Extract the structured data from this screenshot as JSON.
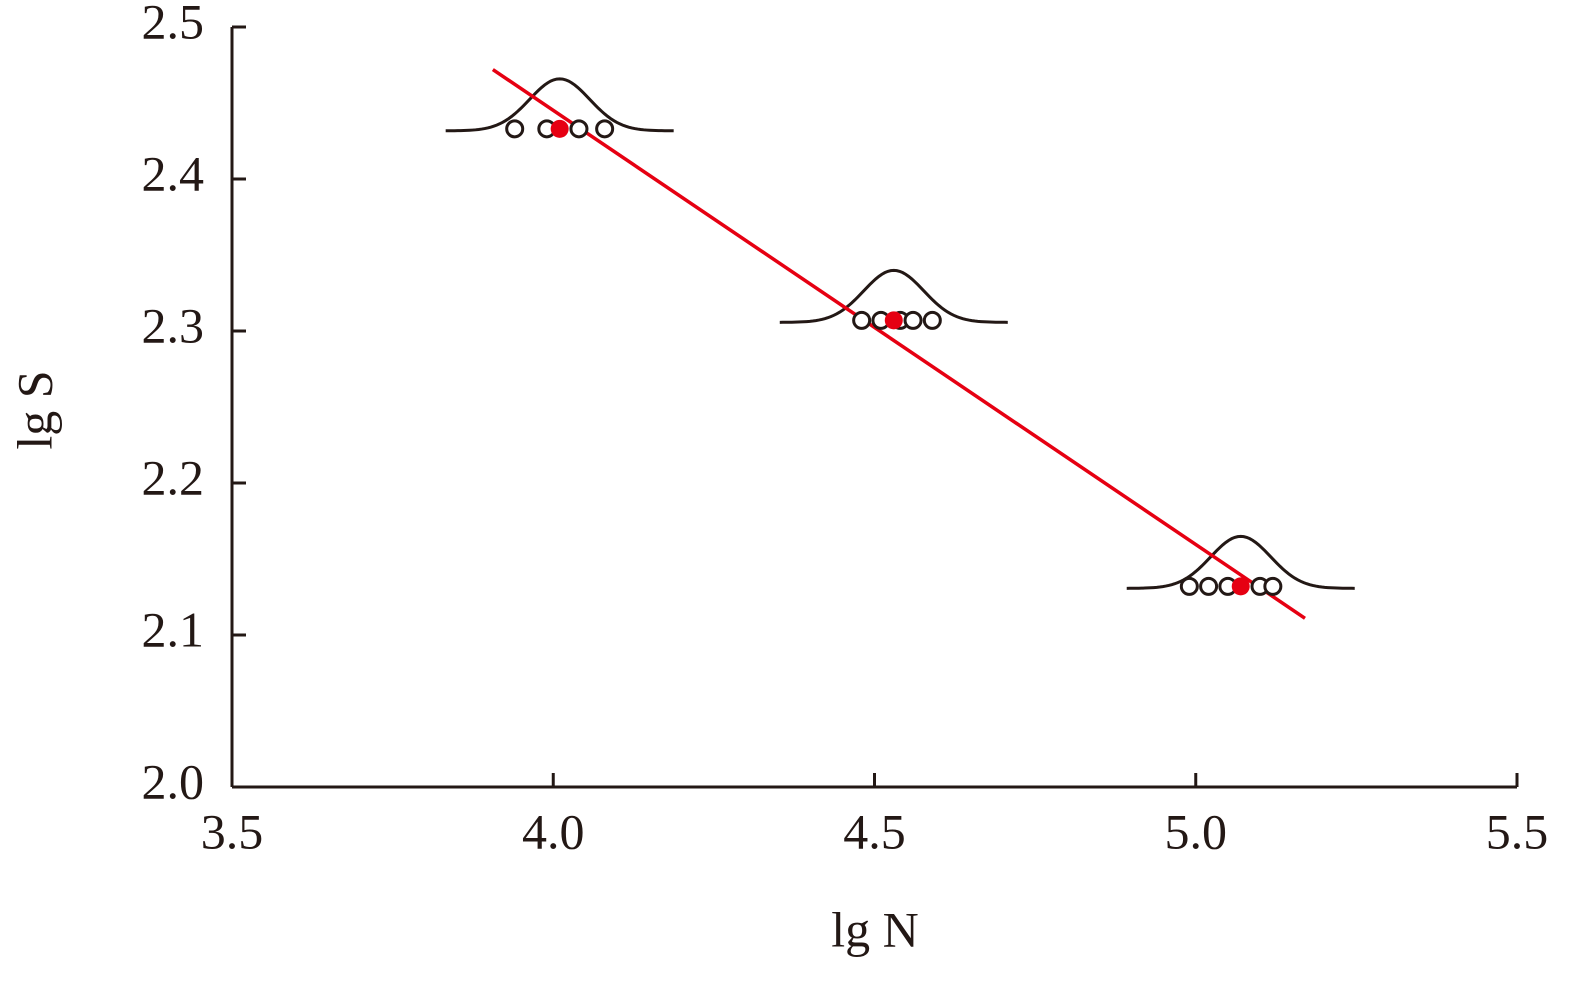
{
  "chart_data": {
    "type": "scatter",
    "x_label": "lg N",
    "y_label": "lg S",
    "xlim": [
      3.5,
      5.5
    ],
    "ylim": [
      2.0,
      2.5
    ],
    "xticks": [
      3.5,
      {
        "value": 4.0,
        "label": "4.0"
      },
      4.5,
      {
        "value": 5.0,
        "label": "5.0"
      },
      5.5
    ],
    "yticks": [
      {
        "value": 2.0,
        "label": "2.0"
      },
      2.1,
      2.2,
      2.3,
      2.4,
      2.5
    ],
    "series": [
      {
        "style": "open",
        "color": "#231815",
        "x": [
          3.94,
          3.99,
          4.04,
          4.08,
          4.48,
          4.51,
          4.54,
          4.56,
          4.59,
          4.99,
          5.02,
          5.05,
          5.1,
          5.12
        ],
        "values": [
          2.433,
          2.433,
          2.433,
          2.433,
          2.307,
          2.307,
          2.307,
          2.307,
          2.307,
          2.132,
          2.132,
          2.132,
          2.132,
          2.132
        ]
      },
      {
        "style": "filled",
        "color": "#e60012",
        "x": [
          4.01,
          4.53,
          5.07
        ],
        "values": [
          2.433,
          2.307,
          2.132
        ]
      },
      {
        "style": "line",
        "color": "#e60012",
        "x": [
          3.906,
          5.17
        ],
        "values": [
          2.472,
          2.111
        ]
      }
    ]
  }
}
